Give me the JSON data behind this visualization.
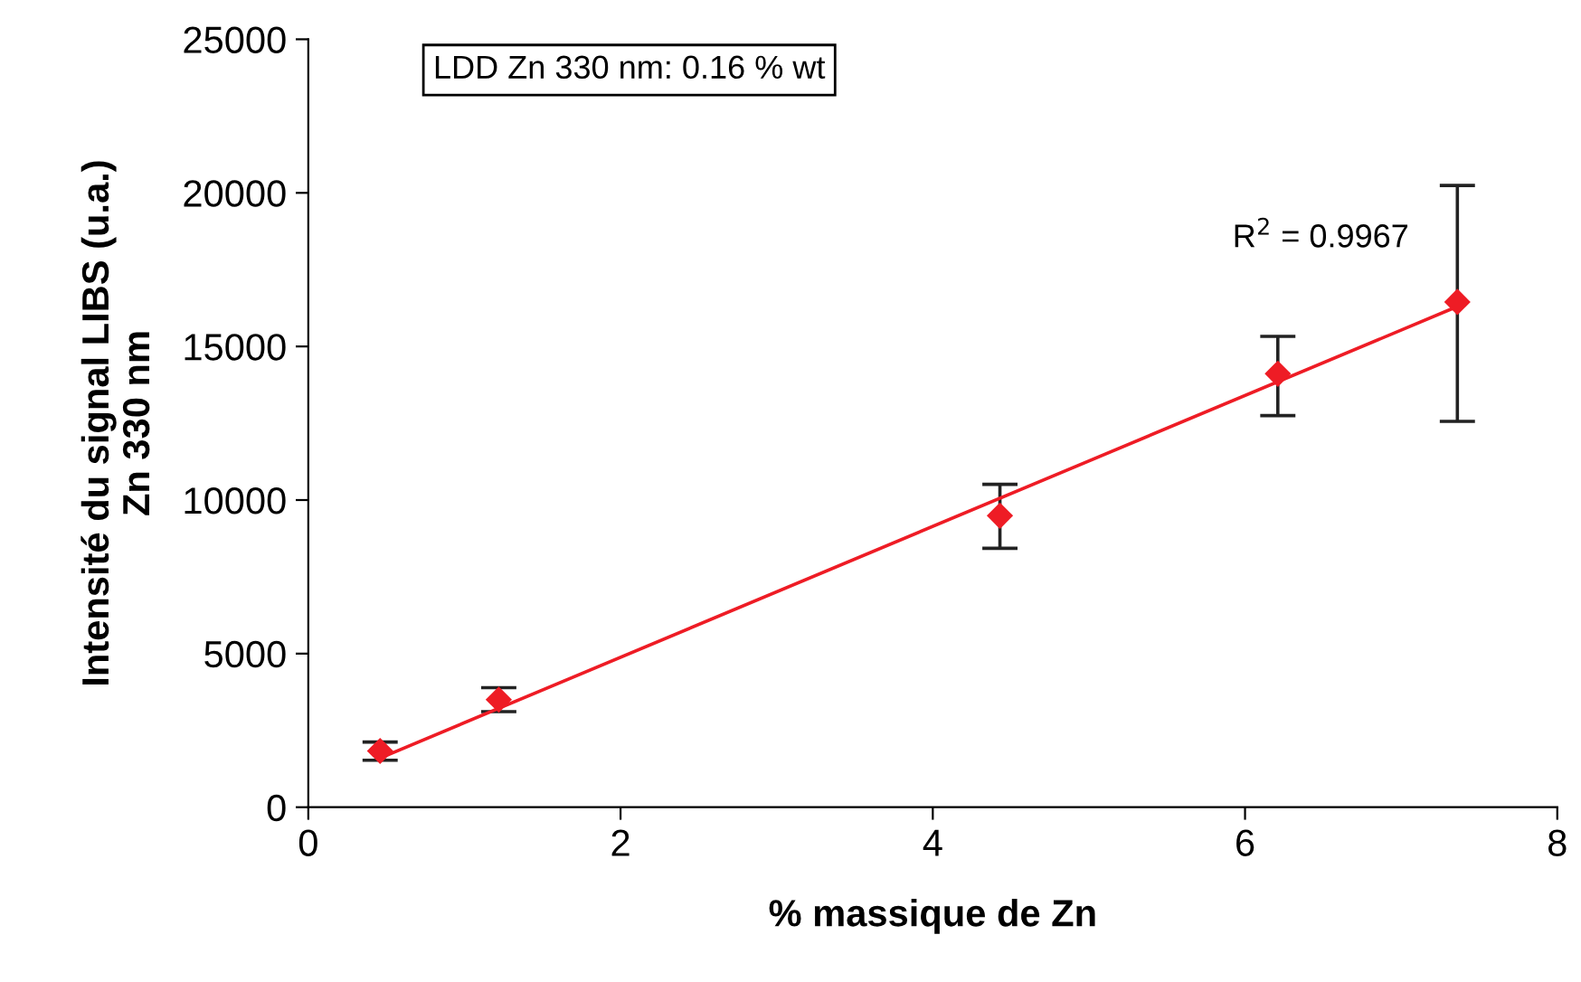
{
  "chart_data": {
    "type": "scatter",
    "xlabel": "% massique de Zn",
    "ylabel": "Intensité du signal LIBS (u.a.)\nZn 330 nm",
    "xlim": [
      0,
      8
    ],
    "xticks": [
      0,
      2,
      4,
      6,
      8
    ],
    "ylim": [
      0,
      25000
    ],
    "yticks": [
      0,
      5000,
      10000,
      15000,
      20000,
      25000
    ],
    "grid": false,
    "legend": false,
    "annotations": [
      "LDD Zn 330 nm: 0.16 % wt",
      "R$^{2}$ = 0.9967"
    ],
    "series": [
      {
        "color": "#ee1c25",
        "marker": "diamond",
        "x": [
          0.46,
          1.22,
          4.43,
          6.21,
          7.36
        ],
        "values": [
          1830,
          3500,
          9490,
          14110,
          16450
        ],
        "errors": [
          [
            1530,
            2120
          ],
          [
            3110,
            3890
          ],
          [
            8430,
            10510
          ],
          [
            12750,
            15330
          ],
          [
            12560,
            20240
          ]
        ]
      },
      {
        "type": "line",
        "color": "#ee1c25",
        "marker": "none",
        "line_style": "solid",
        "x": [
          0.46,
          7.36
        ],
        "values": [
          1600,
          16300
        ]
      }
    ]
  }
}
